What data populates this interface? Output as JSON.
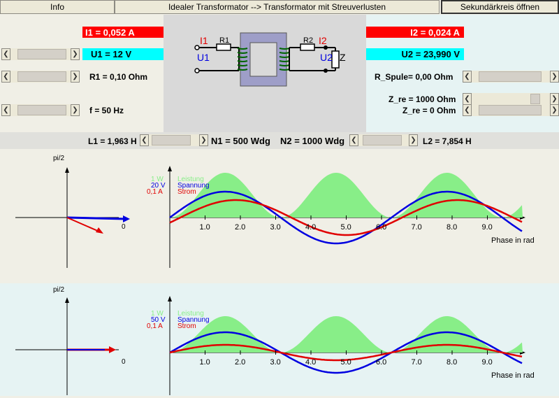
{
  "toolbar": {
    "info_label": "Info",
    "mode_label": "Idealer Transformator  -->  Transformator mit Streuverlusten",
    "secondary_label": "Sekundärkreis öffnen"
  },
  "primary": {
    "i1": "I1 = 0,052 A",
    "u1": "U1 = 12 V",
    "r1": "R1 = 0,10 Ohm",
    "f": "f = 50 Hz",
    "l1": "L1 = 1,963 H",
    "n1": "N1 = 500 Wdg"
  },
  "secondary": {
    "i2": "I2 = 0,024 A",
    "u2": "U2 = 23,990 V",
    "r_spule": "R_Spule= 0,00 Ohm",
    "z_re": "Z_re = 1000 Ohm",
    "z_im": "Z_re = 0 Ohm",
    "l2": "L2 = 7,854 H",
    "n2": "N2 = 1000 Wdg"
  },
  "circuit": {
    "i1": "I1",
    "u1": "U1",
    "r1": "R1",
    "i2": "I2",
    "u2": "U2",
    "r2": "R2",
    "z": "Z"
  },
  "colors": {
    "current": "#e00000",
    "voltage": "#0000e0",
    "power": "#88ee88"
  },
  "graph_top": {
    "pointer_axis_label": "pi/2",
    "pointer_zero": "0",
    "legend_power": "1 W",
    "legend_power_name": "Leistung",
    "legend_voltage": "20 V",
    "legend_voltage_name": "Spannung",
    "legend_current": "0,1 A",
    "legend_current_name": "Strom",
    "x_axis_label": "Phase in rad",
    "x_ticks": [
      "1.0",
      "2.0",
      "3.0",
      "4.0",
      "5.0",
      "6.0",
      "7.0",
      "8.0",
      "9.0"
    ]
  },
  "graph_bottom": {
    "pointer_axis_label": "pi/2",
    "pointer_zero": "0",
    "legend_power": "1 W",
    "legend_power_name": "Leistung",
    "legend_voltage": "50 V",
    "legend_voltage_name": "Spannung",
    "legend_current": "0,1 A",
    "legend_current_name": "Strom",
    "x_axis_label": "Phase in rad",
    "x_ticks": [
      "1.0",
      "2.0",
      "3.0",
      "4.0",
      "5.0",
      "6.0",
      "7.0",
      "8.0",
      "9.0"
    ]
  }
}
